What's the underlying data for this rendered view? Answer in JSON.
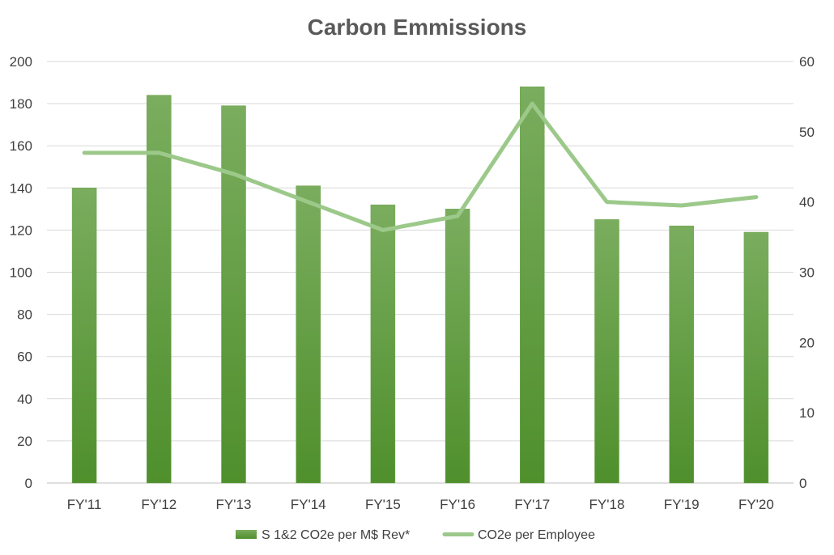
{
  "chart_data": {
    "type": "bar",
    "title": "Carbon Emmissions",
    "categories": [
      "FY'11",
      "FY'12",
      "FY'13",
      "FY'14",
      "FY'15",
      "FY'16",
      "FY'17",
      "FY'18",
      "FY'19",
      "FY'20"
    ],
    "series": [
      {
        "name": "S 1&2 CO2e per M$ Rev*",
        "type": "bar",
        "axis": "left",
        "color": "#5b9b3a",
        "values": [
          140,
          184,
          179,
          141,
          132,
          130,
          188,
          125,
          122,
          119
        ]
      },
      {
        "name": "CO2e per Employee",
        "type": "line",
        "axis": "right",
        "color": "#9cc98a",
        "values": [
          47,
          47,
          44,
          40,
          36,
          38,
          54,
          40,
          39.5,
          40.7
        ]
      }
    ],
    "ylim_left": [
      0,
      200
    ],
    "yticks_left": [
      0,
      20,
      40,
      60,
      80,
      100,
      120,
      140,
      160,
      180,
      200
    ],
    "ylim_right": [
      0,
      60
    ],
    "yticks_right": [
      0,
      10,
      20,
      30,
      40,
      50,
      60
    ],
    "grid": true,
    "legend_position": "bottom"
  }
}
